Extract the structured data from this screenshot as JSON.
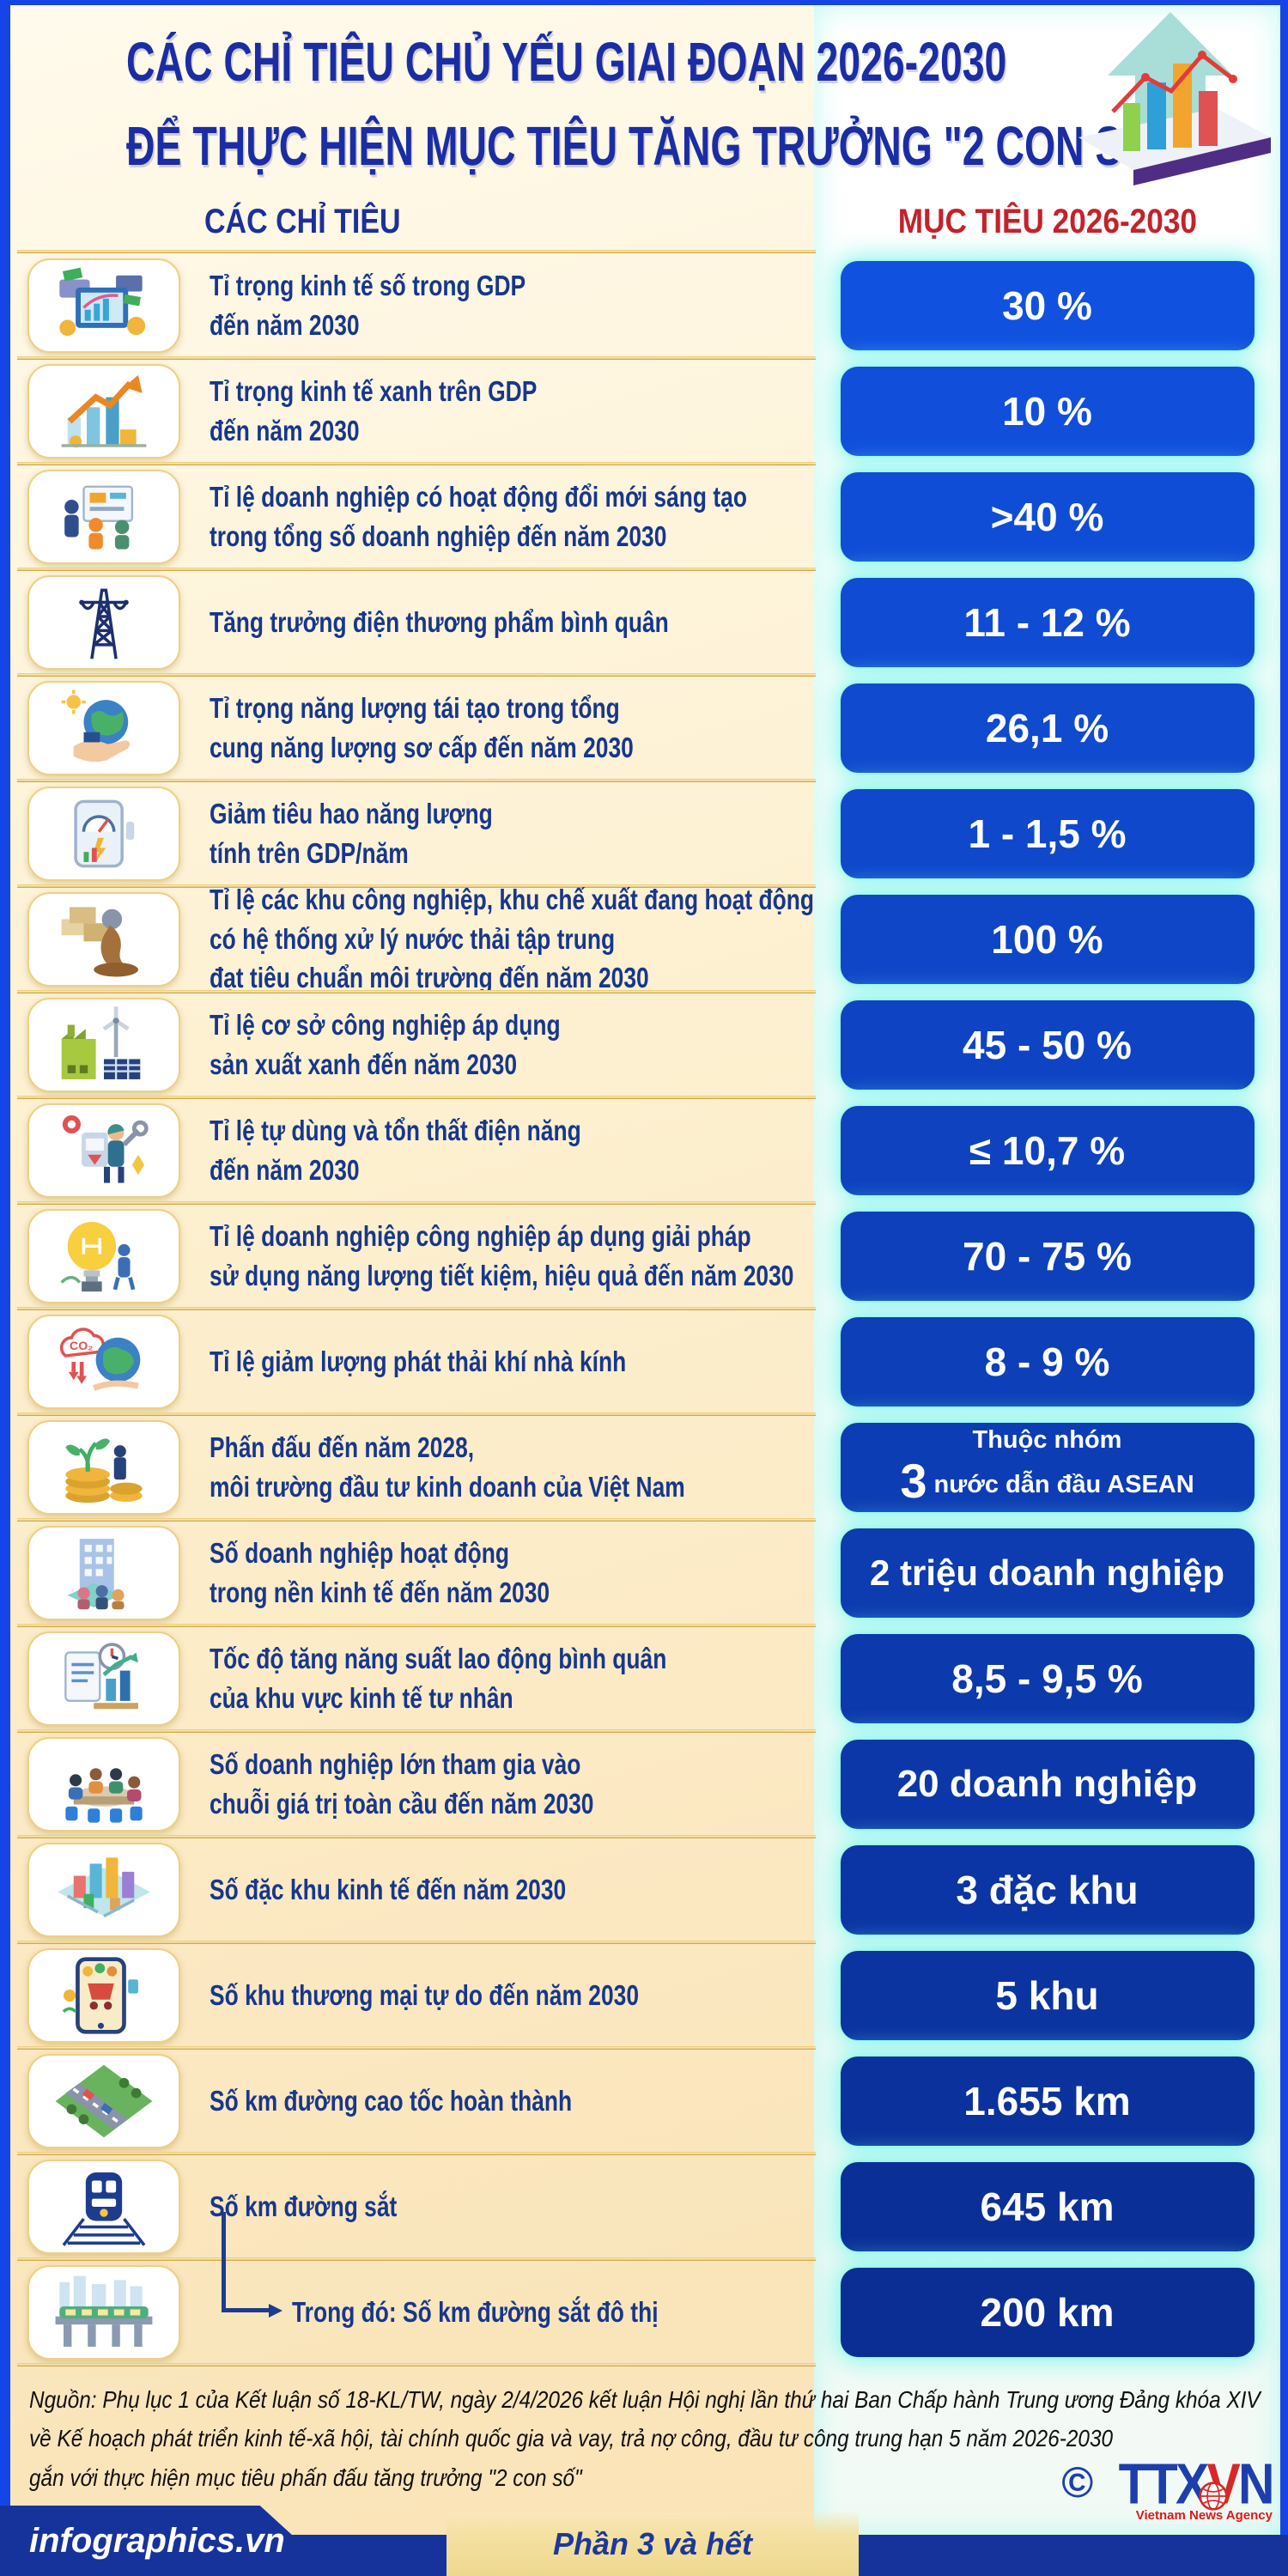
{
  "header": {
    "title_line1": "CÁC CHỈ TIÊU CHỦ YẾU GIAI ĐOẠN 2026-2030",
    "title_line2": "ĐỂ THỰC HIỆN MỤC TIÊU TĂNG TRƯỞNG \"2 CON SỐ\"",
    "illustration_icon": "growth-arrow-chart-icon"
  },
  "columns": {
    "indicators": "CÁC CHỈ TIÊU",
    "target": "MỤC TIÊU 2026-2030"
  },
  "colors": {
    "frame_blue": "#1545e6",
    "title_blue": "#1b2da4",
    "header_red": "#c4222b",
    "label_navy": "#17378c",
    "value_box_top": "#1151df",
    "value_box_bottom": "#0a2e94",
    "gold_separator": "#d9a940",
    "cream_background": "#fdf1d2",
    "bottom_bar_blue": "#16339c"
  },
  "table": {
    "rows": [
      {
        "icon": "digital-economy-dashboard-icon",
        "label_lines": [
          "Tỉ trọng kinh tế số trong GDP",
          "đến năm 2030"
        ],
        "value": "30 %"
      },
      {
        "icon": "growth-chart-arrow-icon",
        "label_lines": [
          "Tỉ trọng kinh tế xanh trên GDP",
          "đến năm 2030"
        ],
        "value": "10 %"
      },
      {
        "icon": "innovation-team-icon",
        "label_lines": [
          "Tỉ lệ doanh nghiệp có hoạt động đổi mới sáng tạo",
          "trong tổng số doanh nghiệp đến năm 2030"
        ],
        "value": ">40 %"
      },
      {
        "icon": "power-transmission-tower-icon",
        "label_lines": [
          "Tăng trưởng điện thương phẩm bình quân"
        ],
        "value": "11 - 12 %"
      },
      {
        "icon": "hand-holding-green-earth-icon",
        "label_lines": [
          "Tỉ trọng năng lượng tái tạo trong tổng",
          "cung năng lượng sơ cấp đến năm 2030"
        ],
        "value": "26,1 %"
      },
      {
        "icon": "energy-meter-icon",
        "label_lines": [
          "Giảm tiêu hao năng lượng",
          "tính trên GDP/năm"
        ],
        "value": "1 - 1,5 %"
      },
      {
        "icon": "industrial-wastewater-icon",
        "label_lines": [
          "Tỉ lệ các khu công nghiệp, khu chế xuất đang hoạt động",
          "có hệ thống xử lý nước thải tập trung",
          "đạt tiêu chuẩn môi trường đến năm 2030"
        ],
        "value": "100 %"
      },
      {
        "icon": "green-factory-icon",
        "label_lines": [
          "Tỉ lệ cơ sở công nghiệp áp dụng",
          "sản xuất xanh đến năm 2030"
        ],
        "value": "45 - 50 %"
      },
      {
        "icon": "electric-maintenance-worker-icon",
        "label_lines": [
          "Tỉ lệ tự dùng và tổn thất điện năng",
          "đến năm 2030"
        ],
        "value": "≤ 10,7 %"
      },
      {
        "icon": "energy-saving-bulb-icon",
        "label_lines": [
          "Tỉ lệ doanh nghiệp công nghiệp áp dụng giải pháp",
          "sử dụng năng lượng tiết kiệm, hiệu quả đến năm 2030"
        ],
        "value": "70 - 75 %"
      },
      {
        "icon": "co2-reduction-icon",
        "label_lines": [
          "Tỉ lệ giảm lượng phát thải khí nhà kính"
        ],
        "value": "8 - 9 %"
      },
      {
        "icon": "investment-growth-money-icon",
        "label_lines": [
          "Phấn đấu đến năm 2028,",
          "môi trường đầu tư kinh doanh của Việt Nam"
        ],
        "value_top": "Thuộc nhóm",
        "value_big": "3",
        "value_rest": "nước dẫn đầu ASEAN"
      },
      {
        "icon": "office-building-people-icon",
        "label_lines": [
          "Số doanh nghiệp hoạt động",
          "trong nền kinh tế đến năm 2030"
        ],
        "value": "2 triệu doanh nghiệp",
        "value_size": 42
      },
      {
        "icon": "productivity-chart-icon",
        "label_lines": [
          "Tốc độ tăng năng suất lao động bình quân",
          "của khu vực kinh tế tư nhân"
        ],
        "value": "8,5 - 9,5 %"
      },
      {
        "icon": "business-meeting-icon",
        "label_lines": [
          "Số doanh nghiệp lớn tham gia vào",
          "chuỗi giá trị toàn cầu đến năm 2030"
        ],
        "value": "20 doanh nghiệp",
        "value_size": 44
      },
      {
        "icon": "economic-zone-city-icon",
        "label_lines": [
          "Số đặc khu kinh tế đến năm 2030"
        ],
        "value": "3 đặc khu"
      },
      {
        "icon": "free-trade-shopping-icon",
        "label_lines": [
          "Số khu thương mại tự do đến năm 2030"
        ],
        "value": "5 khu"
      },
      {
        "icon": "highway-icon",
        "label_lines": [
          "Số km đường cao tốc hoàn thành"
        ],
        "value": "1.655 km"
      },
      {
        "icon": "railway-train-icon",
        "label_lines": [
          "Số km đường sắt"
        ],
        "value": "645 km"
      },
      {
        "icon": "urban-metro-icon",
        "label_lines": [
          "Trong đó: Số km đường sắt đô thị"
        ],
        "value": "200 km",
        "indent": true
      }
    ]
  },
  "chart_data": {
    "type": "table",
    "title": "CÁC CHỈ TIÊU CHỦ YẾU GIAI ĐOẠN 2026-2030 ĐỂ THỰC HIỆN MỤC TIÊU TĂNG TRƯỞNG \"2 CON SỐ\"",
    "columns": [
      "CÁC CHỈ TIÊU",
      "MỤC TIÊU 2026-2030"
    ],
    "rows": [
      [
        "Tỉ trọng kinh tế số trong GDP đến năm 2030",
        "30 %"
      ],
      [
        "Tỉ trọng kinh tế xanh trên GDP đến năm 2030",
        "10 %"
      ],
      [
        "Tỉ lệ doanh nghiệp có hoạt động đổi mới sáng tạo trong tổng số doanh nghiệp đến năm 2030",
        ">40 %"
      ],
      [
        "Tăng trưởng điện thương phẩm bình quân",
        "11 - 12 %"
      ],
      [
        "Tỉ trọng năng lượng tái tạo trong tổng cung năng lượng sơ cấp đến năm 2030",
        "26,1 %"
      ],
      [
        "Giảm tiêu hao năng lượng tính trên GDP/năm",
        "1 - 1,5 %"
      ],
      [
        "Tỉ lệ các khu công nghiệp, khu chế xuất đang hoạt động có hệ thống xử lý nước thải tập trung đạt tiêu chuẩn môi trường đến năm 2030",
        "100 %"
      ],
      [
        "Tỉ lệ cơ sở công nghiệp áp dụng sản xuất xanh đến năm 2030",
        "45 - 50 %"
      ],
      [
        "Tỉ lệ tự dùng và tổn thất điện năng đến năm 2030",
        "≤ 10,7 %"
      ],
      [
        "Tỉ lệ doanh nghiệp công nghiệp áp dụng giải pháp sử dụng năng lượng tiết kiệm, hiệu quả đến năm 2030",
        "70 - 75 %"
      ],
      [
        "Tỉ lệ giảm lượng phát thải khí nhà kính",
        "8 - 9 %"
      ],
      [
        "Phấn đấu đến năm 2028, môi trường đầu tư kinh doanh của Việt Nam",
        "Thuộc nhóm 3 nước dẫn đầu ASEAN"
      ],
      [
        "Số doanh nghiệp hoạt động trong nền kinh tế đến năm 2030",
        "2 triệu doanh nghiệp"
      ],
      [
        "Tốc độ tăng năng suất lao động bình quân của khu vực kinh tế tư nhân",
        "8,5 - 9,5 %"
      ],
      [
        "Số doanh nghiệp lớn tham gia vào chuỗi giá trị toàn cầu đến năm 2030",
        "20 doanh nghiệp"
      ],
      [
        "Số đặc khu kinh tế đến năm 2030",
        "3 đặc khu"
      ],
      [
        "Số khu thương mại tự do đến năm 2030",
        "5 khu"
      ],
      [
        "Số km đường cao tốc hoàn thành",
        "1.655 km"
      ],
      [
        "Số km đường sắt",
        "645 km"
      ],
      [
        "Trong đó: Số km đường sắt đô thị",
        "200 km"
      ]
    ]
  },
  "footer": {
    "source_line1": "Nguồn: Phụ lục 1 của Kết luận số 18-KL/TW, ngày 2/4/2026 kết luận Hội nghị lần thứ hai Ban Chấp hành Trung ương Đảng khóa XIV",
    "source_line2": "về Kế hoạch phát triển kinh tế-xã hội, tài chính quốc gia và vay, trả nợ công, đầu tư công trung hạn 5 năm 2026-2030",
    "source_line3": "gắn với thực hiện mục tiêu phấn đấu tăng trưởng \"2 con số\"",
    "brand": "infographics.vn",
    "part_label": "Phần 3 và hết",
    "agency": {
      "copyright": "©",
      "logo": "TTXVN",
      "logo_sub": "Vietnam News Agency"
    }
  }
}
